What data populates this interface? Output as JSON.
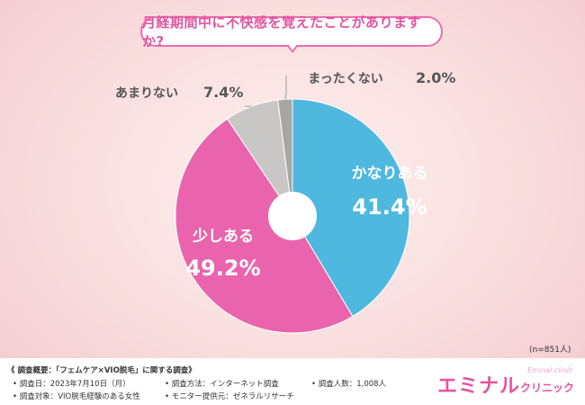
{
  "title": "月経期間中に不快感を覚えたことがありますか?",
  "sample_size": "(n=851人)",
  "chart_data": {
    "type": "pie",
    "categories": [
      "かなりある",
      "少しある",
      "あまりない",
      "まったくない"
    ],
    "values": [
      41.4,
      49.2,
      7.4,
      2.0
    ],
    "value_labels": [
      "41.4%",
      "49.2%",
      "7.4%",
      "2.0%"
    ],
    "colors": [
      "#4fb8df",
      "#e964ac",
      "#c9c6c6",
      "#a8a5a5"
    ],
    "donut_hole": true,
    "start": "top",
    "direction": "clockwise"
  },
  "footer": {
    "heading": "《 調査概要：「フェムケア×VIO脱毛」に関する調査》",
    "date": "• 調査日：2023年7月10日（月）",
    "method": "• 調査方法：インターネット調査",
    "count": "• 調査人数：1,008人",
    "target": "• 調査対象：VIO脱毛経験のある女性",
    "provider": "• モニター提供元：ゼネラルリサーチ"
  },
  "logo": {
    "main": "エミナル",
    "sub": "クリニック",
    "en": "Eminal clinic",
    "heart_icon": "heart-icon"
  }
}
